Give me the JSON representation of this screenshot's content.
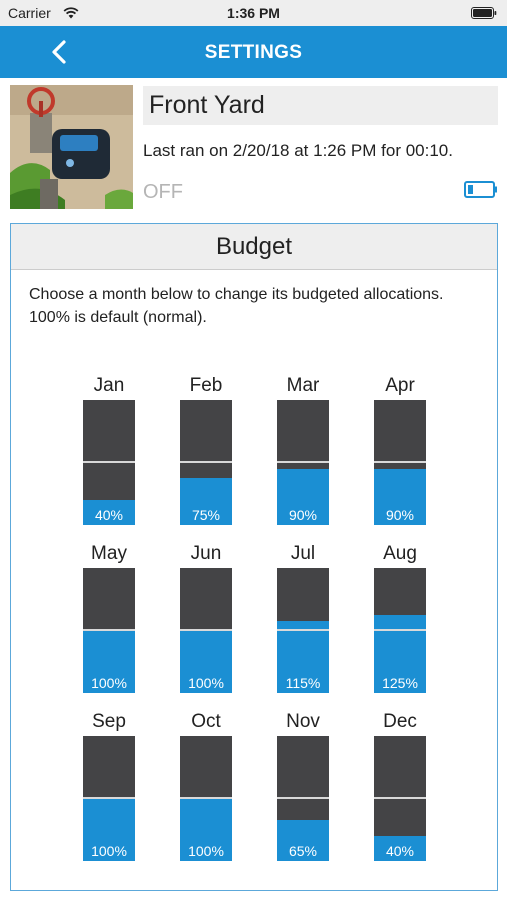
{
  "status_bar": {
    "carrier": "Carrier",
    "time": "1:36 PM"
  },
  "nav": {
    "title": "SETTINGS"
  },
  "device": {
    "name": "Front Yard",
    "last_ran": "Last ran on 2/20/18 at 1:26 PM for 00:10.",
    "state": "OFF"
  },
  "budget": {
    "title": "Budget",
    "description": "Choose a month below to change its budgeted allocations.  100% is default (normal).",
    "months": [
      {
        "name": "Jan",
        "percent": 40,
        "label": "40%"
      },
      {
        "name": "Feb",
        "percent": 75,
        "label": "75%"
      },
      {
        "name": "Mar",
        "percent": 90,
        "label": "90%"
      },
      {
        "name": "Apr",
        "percent": 90,
        "label": "90%"
      },
      {
        "name": "May",
        "percent": 100,
        "label": "100%"
      },
      {
        "name": "Jun",
        "percent": 100,
        "label": "100%"
      },
      {
        "name": "Jul",
        "percent": 115,
        "label": "115%"
      },
      {
        "name": "Aug",
        "percent": 125,
        "label": "125%"
      },
      {
        "name": "Sep",
        "percent": 100,
        "label": "100%"
      },
      {
        "name": "Oct",
        "percent": 100,
        "label": "100%"
      },
      {
        "name": "Nov",
        "percent": 65,
        "label": "65%"
      },
      {
        "name": "Dec",
        "percent": 40,
        "label": "40%"
      }
    ]
  },
  "colors": {
    "accent": "#1b8fd3",
    "bar_background": "#444446",
    "panel_border": "#5ca8da"
  }
}
